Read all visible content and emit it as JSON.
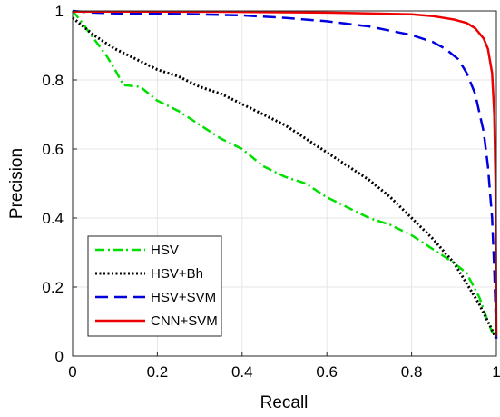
{
  "chart_data": {
    "type": "line",
    "title": "",
    "xlabel": "Recall",
    "ylabel": "Precision",
    "xlim": [
      0,
      1
    ],
    "ylim": [
      0,
      1
    ],
    "xticks": [
      "0",
      "0.2",
      "0.4",
      "0.6",
      "0.8",
      "1"
    ],
    "yticks": [
      "0",
      "0.2",
      "0.4",
      "0.6",
      "0.8",
      "1"
    ],
    "grid": true,
    "legend_position": "bottom-left",
    "series": [
      {
        "name": "HSV",
        "color": "#00e000",
        "style": "dash-dot",
        "points": [
          [
            0,
            1.0
          ],
          [
            0.02,
            0.97
          ],
          [
            0.05,
            0.92
          ],
          [
            0.08,
            0.87
          ],
          [
            0.1,
            0.83
          ],
          [
            0.12,
            0.785
          ],
          [
            0.16,
            0.78
          ],
          [
            0.2,
            0.74
          ],
          [
            0.25,
            0.71
          ],
          [
            0.3,
            0.67
          ],
          [
            0.35,
            0.63
          ],
          [
            0.4,
            0.6
          ],
          [
            0.45,
            0.55
          ],
          [
            0.5,
            0.52
          ],
          [
            0.55,
            0.5
          ],
          [
            0.6,
            0.46
          ],
          [
            0.65,
            0.43
          ],
          [
            0.7,
            0.4
          ],
          [
            0.75,
            0.38
          ],
          [
            0.8,
            0.35
          ],
          [
            0.85,
            0.31
          ],
          [
            0.9,
            0.27
          ],
          [
            0.93,
            0.24
          ],
          [
            0.96,
            0.17
          ],
          [
            0.98,
            0.1
          ],
          [
            0.99,
            0.07
          ],
          [
            1.0,
            0.06
          ]
        ]
      },
      {
        "name": "HSV+Bh",
        "color": "#000000",
        "style": "dotted",
        "points": [
          [
            0,
            0.98
          ],
          [
            0.05,
            0.93
          ],
          [
            0.1,
            0.89
          ],
          [
            0.15,
            0.86
          ],
          [
            0.2,
            0.83
          ],
          [
            0.25,
            0.81
          ],
          [
            0.3,
            0.78
          ],
          [
            0.35,
            0.76
          ],
          [
            0.4,
            0.73
          ],
          [
            0.45,
            0.7
          ],
          [
            0.5,
            0.67
          ],
          [
            0.55,
            0.63
          ],
          [
            0.6,
            0.59
          ],
          [
            0.65,
            0.55
          ],
          [
            0.7,
            0.51
          ],
          [
            0.75,
            0.46
          ],
          [
            0.8,
            0.4
          ],
          [
            0.85,
            0.34
          ],
          [
            0.9,
            0.27
          ],
          [
            0.93,
            0.21
          ],
          [
            0.96,
            0.15
          ],
          [
            0.98,
            0.1
          ],
          [
            1.0,
            0.05
          ]
        ]
      },
      {
        "name": "HSV+SVM",
        "color": "#0000dd",
        "style": "dashed",
        "points": [
          [
            0,
            1.0
          ],
          [
            0.05,
            0.995
          ],
          [
            0.1,
            0.993
          ],
          [
            0.2,
            0.992
          ],
          [
            0.3,
            0.99
          ],
          [
            0.4,
            0.987
          ],
          [
            0.5,
            0.98
          ],
          [
            0.6,
            0.97
          ],
          [
            0.7,
            0.955
          ],
          [
            0.8,
            0.93
          ],
          [
            0.85,
            0.91
          ],
          [
            0.88,
            0.89
          ],
          [
            0.91,
            0.86
          ],
          [
            0.93,
            0.82
          ],
          [
            0.95,
            0.76
          ],
          [
            0.97,
            0.65
          ],
          [
            0.98,
            0.55
          ],
          [
            0.99,
            0.4
          ],
          [
            0.995,
            0.25
          ],
          [
            1.0,
            0.05
          ]
        ]
      },
      {
        "name": "CNN+SVM",
        "color": "#ee0000",
        "style": "solid",
        "points": [
          [
            0,
            0.998
          ],
          [
            0.2,
            0.998
          ],
          [
            0.4,
            0.997
          ],
          [
            0.6,
            0.995
          ],
          [
            0.7,
            0.993
          ],
          [
            0.8,
            0.99
          ],
          [
            0.85,
            0.985
          ],
          [
            0.9,
            0.975
          ],
          [
            0.93,
            0.965
          ],
          [
            0.95,
            0.95
          ],
          [
            0.97,
            0.92
          ],
          [
            0.98,
            0.89
          ],
          [
            0.99,
            0.82
          ],
          [
            0.995,
            0.7
          ],
          [
            0.998,
            0.5
          ],
          [
            1.0,
            0.06
          ]
        ]
      }
    ]
  }
}
